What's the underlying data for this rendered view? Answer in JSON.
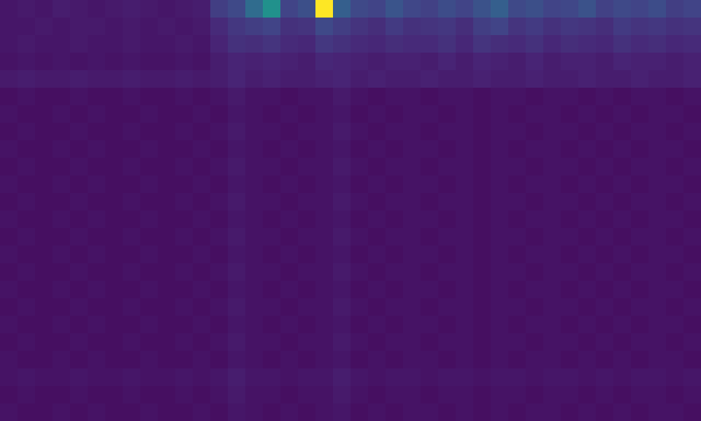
{
  "chart_data": {
    "type": "heatmap",
    "tick_labels": false,
    "zlim": [
      0,
      1
    ],
    "cells": [
      [
        0.06,
        0.07,
        0.06,
        0.08,
        0.07,
        0.06,
        0.07,
        0.08,
        0.07,
        0.06,
        0.07,
        0.08,
        0.18,
        0.22,
        0.35,
        0.5,
        0.2,
        0.24,
        1.0,
        0.3,
        0.22,
        0.2,
        0.26,
        0.21,
        0.19,
        0.23,
        0.2,
        0.25,
        0.3,
        0.22,
        0.24,
        0.2,
        0.21,
        0.25,
        0.19,
        0.22,
        0.2,
        0.23,
        0.18,
        0.2
      ],
      [
        0.06,
        0.06,
        0.07,
        0.06,
        0.07,
        0.07,
        0.06,
        0.07,
        0.06,
        0.07,
        0.06,
        0.07,
        0.12,
        0.16,
        0.18,
        0.2,
        0.14,
        0.15,
        0.22,
        0.18,
        0.15,
        0.13,
        0.17,
        0.14,
        0.15,
        0.16,
        0.13,
        0.18,
        0.2,
        0.15,
        0.17,
        0.14,
        0.16,
        0.15,
        0.13,
        0.17,
        0.15,
        0.16,
        0.14,
        0.15
      ],
      [
        0.06,
        0.07,
        0.06,
        0.06,
        0.07,
        0.06,
        0.06,
        0.07,
        0.06,
        0.06,
        0.07,
        0.06,
        0.1,
        0.14,
        0.13,
        0.15,
        0.12,
        0.11,
        0.16,
        0.14,
        0.12,
        0.11,
        0.13,
        0.12,
        0.12,
        0.14,
        0.11,
        0.15,
        0.13,
        0.12,
        0.14,
        0.11,
        0.13,
        0.12,
        0.11,
        0.14,
        0.12,
        0.13,
        0.11,
        0.12
      ],
      [
        0.05,
        0.06,
        0.05,
        0.06,
        0.05,
        0.06,
        0.05,
        0.06,
        0.05,
        0.05,
        0.06,
        0.05,
        0.08,
        0.1,
        0.09,
        0.1,
        0.09,
        0.08,
        0.11,
        0.1,
        0.09,
        0.08,
        0.09,
        0.09,
        0.08,
        0.1,
        0.08,
        0.1,
        0.09,
        0.08,
        0.1,
        0.08,
        0.09,
        0.09,
        0.08,
        0.1,
        0.09,
        0.09,
        0.08,
        0.09
      ],
      [
        0.07,
        0.08,
        0.07,
        0.07,
        0.08,
        0.07,
        0.07,
        0.08,
        0.07,
        0.07,
        0.08,
        0.07,
        0.08,
        0.1,
        0.08,
        0.09,
        0.08,
        0.08,
        0.09,
        0.1,
        0.08,
        0.09,
        0.08,
        0.08,
        0.09,
        0.08,
        0.08,
        0.09,
        0.08,
        0.08,
        0.09,
        0.08,
        0.08,
        0.09,
        0.08,
        0.08,
        0.09,
        0.08,
        0.08,
        0.09
      ],
      [
        0.04,
        0.05,
        0.04,
        0.04,
        0.05,
        0.04,
        0.04,
        0.05,
        0.04,
        0.04,
        0.05,
        0.04,
        0.05,
        0.07,
        0.05,
        0.05,
        0.04,
        0.05,
        0.05,
        0.07,
        0.05,
        0.04,
        0.05,
        0.05,
        0.04,
        0.05,
        0.05,
        0.04,
        0.05,
        0.05,
        0.04,
        0.05,
        0.05,
        0.04,
        0.05,
        0.04,
        0.05,
        0.05,
        0.04,
        0.05
      ],
      [
        0.05,
        0.04,
        0.04,
        0.05,
        0.04,
        0.05,
        0.04,
        0.04,
        0.05,
        0.04,
        0.04,
        0.05,
        0.04,
        0.06,
        0.05,
        0.04,
        0.05,
        0.04,
        0.05,
        0.06,
        0.04,
        0.05,
        0.04,
        0.05,
        0.05,
        0.04,
        0.05,
        0.04,
        0.05,
        0.04,
        0.05,
        0.05,
        0.04,
        0.05,
        0.04,
        0.05,
        0.04,
        0.05,
        0.05,
        0.04
      ],
      [
        0.04,
        0.05,
        0.04,
        0.04,
        0.05,
        0.04,
        0.04,
        0.05,
        0.04,
        0.04,
        0.05,
        0.04,
        0.05,
        0.07,
        0.05,
        0.05,
        0.04,
        0.05,
        0.05,
        0.07,
        0.05,
        0.04,
        0.05,
        0.05,
        0.04,
        0.05,
        0.05,
        0.04,
        0.05,
        0.05,
        0.04,
        0.05,
        0.05,
        0.04,
        0.05,
        0.04,
        0.05,
        0.05,
        0.04,
        0.05
      ],
      [
        0.05,
        0.04,
        0.04,
        0.05,
        0.04,
        0.05,
        0.04,
        0.04,
        0.05,
        0.04,
        0.04,
        0.05,
        0.04,
        0.06,
        0.05,
        0.04,
        0.05,
        0.04,
        0.05,
        0.06,
        0.04,
        0.05,
        0.04,
        0.05,
        0.05,
        0.04,
        0.05,
        0.04,
        0.05,
        0.04,
        0.05,
        0.05,
        0.04,
        0.05,
        0.04,
        0.05,
        0.04,
        0.05,
        0.05,
        0.04
      ],
      [
        0.04,
        0.05,
        0.04,
        0.04,
        0.05,
        0.04,
        0.04,
        0.05,
        0.04,
        0.04,
        0.05,
        0.04,
        0.05,
        0.07,
        0.05,
        0.05,
        0.04,
        0.05,
        0.05,
        0.07,
        0.05,
        0.04,
        0.05,
        0.05,
        0.04,
        0.05,
        0.05,
        0.04,
        0.05,
        0.05,
        0.04,
        0.05,
        0.05,
        0.04,
        0.05,
        0.04,
        0.05,
        0.05,
        0.04,
        0.05
      ],
      [
        0.05,
        0.04,
        0.04,
        0.05,
        0.04,
        0.05,
        0.04,
        0.04,
        0.05,
        0.04,
        0.04,
        0.05,
        0.04,
        0.06,
        0.05,
        0.04,
        0.05,
        0.04,
        0.05,
        0.06,
        0.04,
        0.05,
        0.04,
        0.05,
        0.05,
        0.04,
        0.05,
        0.04,
        0.05,
        0.04,
        0.05,
        0.05,
        0.04,
        0.05,
        0.04,
        0.05,
        0.04,
        0.05,
        0.05,
        0.04
      ],
      [
        0.04,
        0.05,
        0.04,
        0.04,
        0.05,
        0.04,
        0.04,
        0.05,
        0.04,
        0.04,
        0.05,
        0.04,
        0.05,
        0.07,
        0.05,
        0.05,
        0.04,
        0.05,
        0.05,
        0.07,
        0.05,
        0.04,
        0.05,
        0.05,
        0.04,
        0.05,
        0.05,
        0.04,
        0.05,
        0.05,
        0.04,
        0.05,
        0.05,
        0.04,
        0.05,
        0.04,
        0.05,
        0.05,
        0.04,
        0.05
      ],
      [
        0.05,
        0.04,
        0.04,
        0.05,
        0.04,
        0.05,
        0.04,
        0.04,
        0.05,
        0.04,
        0.04,
        0.05,
        0.04,
        0.06,
        0.05,
        0.04,
        0.05,
        0.04,
        0.05,
        0.06,
        0.04,
        0.05,
        0.04,
        0.05,
        0.05,
        0.04,
        0.05,
        0.04,
        0.05,
        0.04,
        0.05,
        0.05,
        0.04,
        0.05,
        0.04,
        0.05,
        0.04,
        0.05,
        0.05,
        0.04
      ],
      [
        0.04,
        0.05,
        0.04,
        0.04,
        0.05,
        0.04,
        0.04,
        0.05,
        0.04,
        0.04,
        0.05,
        0.04,
        0.05,
        0.07,
        0.05,
        0.05,
        0.04,
        0.05,
        0.05,
        0.07,
        0.05,
        0.04,
        0.05,
        0.05,
        0.04,
        0.05,
        0.05,
        0.04,
        0.05,
        0.05,
        0.04,
        0.05,
        0.05,
        0.04,
        0.05,
        0.04,
        0.05,
        0.05,
        0.04,
        0.05
      ],
      [
        0.05,
        0.04,
        0.04,
        0.05,
        0.04,
        0.05,
        0.04,
        0.04,
        0.05,
        0.04,
        0.04,
        0.05,
        0.04,
        0.06,
        0.05,
        0.04,
        0.05,
        0.04,
        0.05,
        0.06,
        0.04,
        0.05,
        0.04,
        0.05,
        0.05,
        0.04,
        0.05,
        0.04,
        0.05,
        0.04,
        0.05,
        0.05,
        0.04,
        0.05,
        0.04,
        0.05,
        0.04,
        0.05,
        0.05,
        0.04
      ],
      [
        0.04,
        0.05,
        0.04,
        0.04,
        0.05,
        0.04,
        0.04,
        0.05,
        0.04,
        0.04,
        0.05,
        0.04,
        0.05,
        0.07,
        0.05,
        0.05,
        0.04,
        0.05,
        0.05,
        0.07,
        0.05,
        0.04,
        0.05,
        0.05,
        0.04,
        0.05,
        0.05,
        0.04,
        0.05,
        0.05,
        0.04,
        0.05,
        0.05,
        0.04,
        0.05,
        0.04,
        0.05,
        0.05,
        0.04,
        0.05
      ],
      [
        0.05,
        0.04,
        0.04,
        0.05,
        0.04,
        0.05,
        0.04,
        0.04,
        0.05,
        0.04,
        0.04,
        0.05,
        0.04,
        0.06,
        0.05,
        0.04,
        0.05,
        0.04,
        0.05,
        0.06,
        0.04,
        0.05,
        0.04,
        0.05,
        0.05,
        0.04,
        0.05,
        0.04,
        0.05,
        0.04,
        0.05,
        0.05,
        0.04,
        0.05,
        0.04,
        0.05,
        0.04,
        0.05,
        0.05,
        0.04
      ],
      [
        0.04,
        0.05,
        0.04,
        0.04,
        0.05,
        0.04,
        0.04,
        0.05,
        0.04,
        0.04,
        0.05,
        0.04,
        0.05,
        0.07,
        0.05,
        0.05,
        0.04,
        0.05,
        0.05,
        0.07,
        0.05,
        0.04,
        0.05,
        0.05,
        0.04,
        0.05,
        0.05,
        0.04,
        0.05,
        0.05,
        0.04,
        0.05,
        0.05,
        0.04,
        0.05,
        0.04,
        0.05,
        0.05,
        0.04,
        0.05
      ],
      [
        0.05,
        0.04,
        0.04,
        0.05,
        0.04,
        0.05,
        0.04,
        0.04,
        0.05,
        0.04,
        0.04,
        0.05,
        0.04,
        0.06,
        0.05,
        0.04,
        0.05,
        0.04,
        0.05,
        0.06,
        0.04,
        0.05,
        0.04,
        0.05,
        0.05,
        0.04,
        0.05,
        0.04,
        0.05,
        0.04,
        0.05,
        0.05,
        0.04,
        0.05,
        0.04,
        0.05,
        0.04,
        0.05,
        0.05,
        0.04
      ],
      [
        0.04,
        0.05,
        0.04,
        0.04,
        0.05,
        0.04,
        0.04,
        0.05,
        0.04,
        0.04,
        0.05,
        0.04,
        0.05,
        0.07,
        0.05,
        0.05,
        0.04,
        0.05,
        0.05,
        0.07,
        0.05,
        0.04,
        0.05,
        0.05,
        0.04,
        0.05,
        0.05,
        0.04,
        0.05,
        0.05,
        0.04,
        0.05,
        0.05,
        0.04,
        0.05,
        0.04,
        0.05,
        0.05,
        0.04,
        0.05
      ],
      [
        0.05,
        0.04,
        0.04,
        0.05,
        0.04,
        0.05,
        0.04,
        0.04,
        0.05,
        0.04,
        0.04,
        0.05,
        0.04,
        0.06,
        0.05,
        0.04,
        0.05,
        0.04,
        0.05,
        0.06,
        0.04,
        0.05,
        0.04,
        0.05,
        0.05,
        0.04,
        0.05,
        0.04,
        0.05,
        0.04,
        0.05,
        0.05,
        0.04,
        0.05,
        0.04,
        0.05,
        0.04,
        0.05,
        0.05,
        0.04
      ],
      [
        0.05,
        0.06,
        0.05,
        0.05,
        0.06,
        0.05,
        0.05,
        0.06,
        0.05,
        0.05,
        0.06,
        0.05,
        0.06,
        0.08,
        0.06,
        0.06,
        0.05,
        0.06,
        0.06,
        0.08,
        0.06,
        0.05,
        0.06,
        0.06,
        0.05,
        0.06,
        0.06,
        0.05,
        0.06,
        0.06,
        0.05,
        0.06,
        0.06,
        0.05,
        0.06,
        0.05,
        0.06,
        0.06,
        0.05,
        0.06
      ],
      [
        0.04,
        0.05,
        0.04,
        0.04,
        0.05,
        0.04,
        0.04,
        0.05,
        0.04,
        0.04,
        0.05,
        0.04,
        0.05,
        0.07,
        0.05,
        0.05,
        0.04,
        0.05,
        0.05,
        0.07,
        0.05,
        0.04,
        0.05,
        0.05,
        0.04,
        0.05,
        0.05,
        0.04,
        0.05,
        0.05,
        0.04,
        0.05,
        0.05,
        0.04,
        0.05,
        0.04,
        0.05,
        0.05,
        0.04,
        0.05
      ],
      [
        0.05,
        0.04,
        0.04,
        0.05,
        0.04,
        0.05,
        0.04,
        0.04,
        0.05,
        0.04,
        0.04,
        0.05,
        0.04,
        0.06,
        0.05,
        0.04,
        0.05,
        0.04,
        0.05,
        0.06,
        0.04,
        0.05,
        0.04,
        0.05,
        0.05,
        0.04,
        0.05,
        0.04,
        0.05,
        0.04,
        0.05,
        0.05,
        0.04,
        0.05,
        0.04,
        0.05,
        0.04,
        0.05,
        0.05,
        0.04
      ]
    ]
  }
}
